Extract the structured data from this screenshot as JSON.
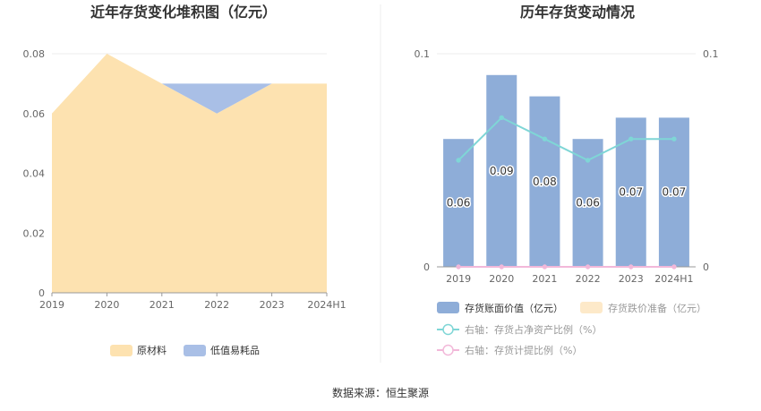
{
  "source": "数据来源：恒生聚源",
  "chart_data": [
    {
      "type": "area",
      "title": "近年存货变化堆积图（亿元）",
      "categories": [
        "2019",
        "2020",
        "2021",
        "2022",
        "2023",
        "2024H1"
      ],
      "y_ticks": [
        "0",
        "0.02",
        "0.04",
        "0.06",
        "0.08"
      ],
      "ylim": [
        0,
        0.08
      ],
      "stacked": true,
      "series": [
        {
          "name": "原材料",
          "values": [
            0.06,
            0.08,
            0.07,
            0.06,
            0.07,
            0.07
          ],
          "color": "#fde2b0"
        },
        {
          "name": "低值易耗品",
          "values": [
            0,
            0,
            0,
            0.01,
            0,
            0
          ],
          "color": "#a9bfe6"
        }
      ],
      "legend_position": "bottom",
      "grid": true
    },
    {
      "type": "bar",
      "title": "历年存货变动情况",
      "categories": [
        "2019",
        "2020",
        "2021",
        "2022",
        "2023",
        "2024H1"
      ],
      "y_left_ticks": [
        "0",
        "0.1"
      ],
      "y_right_ticks": [
        "0",
        "0.1"
      ],
      "ylim": [
        0,
        0.1
      ],
      "series": [
        {
          "name": "存货账面价值（亿元）",
          "type": "bar",
          "values": [
            0.06,
            0.09,
            0.08,
            0.06,
            0.07,
            0.07
          ],
          "labels": [
            "0.06",
            "0.09",
            "0.08",
            "0.06",
            "0.07",
            "0.07"
          ],
          "color": "#8eadd8"
        },
        {
          "name": "存货跌价准备（亿元）",
          "type": "bar",
          "values": [
            0,
            0,
            0,
            0,
            0,
            0
          ],
          "color": "#fde9c9"
        },
        {
          "name": "右轴：存货占净资产比例（%）",
          "type": "line",
          "axis": "right",
          "values": [
            0.05,
            0.07,
            0.06,
            0.05,
            0.06,
            0.06
          ],
          "color": "#7fd6d6"
        },
        {
          "name": "右轴：存货计提比例（%）",
          "type": "line",
          "axis": "right",
          "values": [
            0,
            0,
            0,
            0,
            0,
            0
          ],
          "color": "#f2b8d9"
        }
      ],
      "legend_position": "bottom",
      "grid": true
    }
  ]
}
